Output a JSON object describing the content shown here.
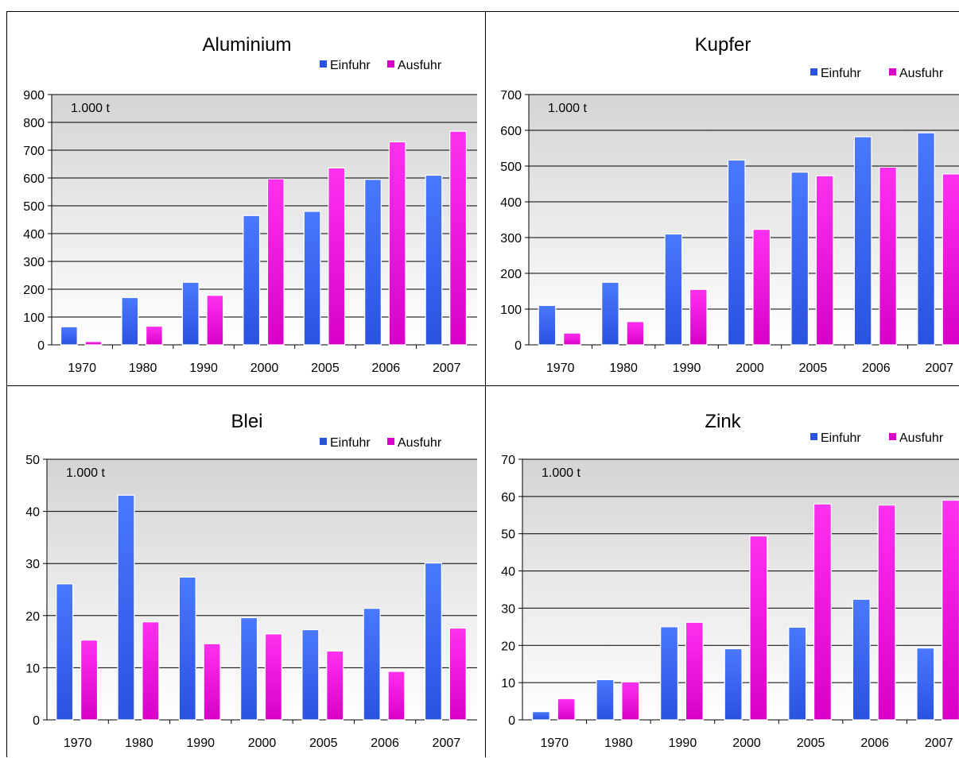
{
  "legend": {
    "import_label": "Einfuhr",
    "export_label": "Ausfuhr"
  },
  "colors": {
    "import": "#2a52e0",
    "import_light": "#4a78ff",
    "export": "#d800c8",
    "export_light": "#ff30f0",
    "plot_top": "#d4d4d4",
    "plot_bottom": "#ffffff"
  },
  "chart_data": [
    {
      "type": "bar",
      "title": "Aluminium",
      "unit_label": "1.000 t",
      "categories": [
        "1970",
        "1980",
        "1990",
        "2000",
        "2005",
        "2006",
        "2007"
      ],
      "ylim": [
        0,
        900
      ],
      "yticks": [
        0,
        100,
        200,
        300,
        400,
        500,
        600,
        700,
        800,
        900
      ],
      "grid": true,
      "legend_position": "top-right",
      "series": [
        {
          "name": "Einfuhr",
          "values": [
            65,
            170,
            225,
            465,
            480,
            595,
            610
          ]
        },
        {
          "name": "Ausfuhr",
          "values": [
            12,
            67,
            178,
            597,
            636,
            730,
            768
          ]
        }
      ]
    },
    {
      "type": "bar",
      "title": "Kupfer",
      "unit_label": "1.000 t",
      "categories": [
        "1970",
        "1980",
        "1990",
        "2000",
        "2005",
        "2006",
        "2007"
      ],
      "ylim": [
        0,
        700
      ],
      "yticks": [
        0,
        100,
        200,
        300,
        400,
        500,
        600,
        700
      ],
      "grid": true,
      "legend_position": "top-right",
      "series": [
        {
          "name": "Einfuhr",
          "values": [
            110,
            175,
            310,
            517,
            483,
            582,
            593
          ]
        },
        {
          "name": "Ausfuhr",
          "values": [
            33,
            65,
            155,
            323,
            473,
            497,
            478
          ]
        }
      ]
    },
    {
      "type": "bar",
      "title": "Blei",
      "unit_label": "1.000 t",
      "categories": [
        "1970",
        "1980",
        "1990",
        "2000",
        "2005",
        "2006",
        "2007"
      ],
      "ylim": [
        0,
        50
      ],
      "yticks": [
        0,
        10,
        20,
        30,
        40,
        50
      ],
      "grid": true,
      "legend_position": "top-right",
      "series": [
        {
          "name": "Einfuhr",
          "values": [
            26.1,
            43.1,
            27.4,
            19.6,
            17.3,
            21.4,
            30.1
          ]
        },
        {
          "name": "Ausfuhr",
          "values": [
            15.3,
            18.8,
            14.6,
            16.5,
            13.2,
            9.3,
            17.6
          ]
        }
      ]
    },
    {
      "type": "bar",
      "title": "Zink",
      "unit_label": "1.000 t",
      "categories": [
        "1970",
        "1980",
        "1990",
        "2000",
        "2005",
        "2006",
        "2007"
      ],
      "ylim": [
        0,
        70
      ],
      "yticks": [
        0,
        10,
        20,
        30,
        40,
        50,
        60,
        70
      ],
      "grid": true,
      "legend_position": "top-right",
      "series": [
        {
          "name": "Einfuhr",
          "values": [
            2.2,
            10.8,
            25.0,
            19.1,
            24.9,
            32.4,
            19.3
          ]
        },
        {
          "name": "Ausfuhr",
          "values": [
            5.7,
            10.2,
            26.2,
            49.4,
            58.0,
            57.7,
            59.0
          ]
        }
      ]
    }
  ]
}
